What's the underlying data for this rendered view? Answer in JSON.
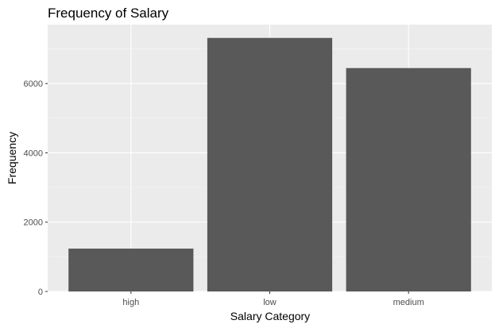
{
  "chart_data": {
    "type": "bar",
    "title": "Frequency of Salary",
    "xlabel": "Salary Category",
    "ylabel": "Frequency",
    "categories": [
      "high",
      "low",
      "medium"
    ],
    "values": [
      1237,
      7316,
      6446
    ],
    "ylim": [
      0,
      7700
    ],
    "yticks": [
      0,
      2000,
      4000,
      6000
    ],
    "grid": true,
    "bar_color": "#595959",
    "panel_color": "#ebebeb"
  }
}
